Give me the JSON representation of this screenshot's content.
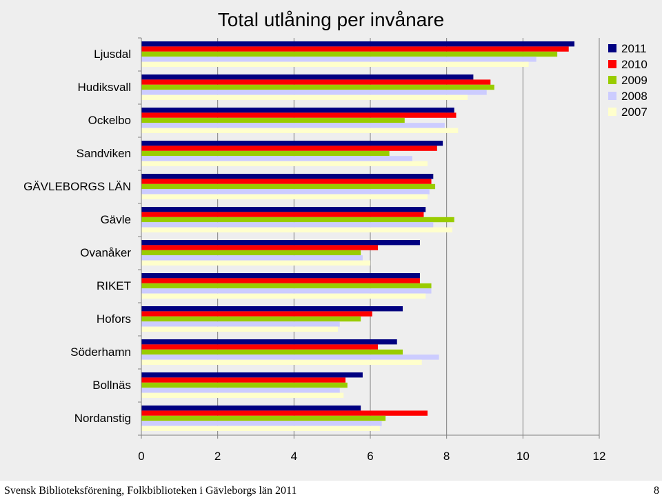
{
  "chart_data": {
    "type": "bar",
    "orientation": "horizontal",
    "title": "Total utlåning per invånare",
    "xlabel": "",
    "ylabel": "",
    "xlim": [
      0,
      12
    ],
    "xticks": [
      0,
      2,
      4,
      6,
      8,
      10,
      12
    ],
    "grid": true,
    "legend_position": "right",
    "categories": [
      "Ljusdal",
      "Hudiksvall",
      "Ockelbo",
      "Sandviken",
      "GÄVLEBORGS LÄN",
      "Gävle",
      "Ovanåker",
      "RIKET",
      "Hofors",
      "Söderhamn",
      "Bollnäs",
      "Nordanstig"
    ],
    "series": [
      {
        "name": "2011",
        "color": "#000080",
        "values": [
          11.35,
          8.7,
          8.2,
          7.9,
          7.65,
          7.45,
          7.3,
          7.3,
          6.85,
          6.7,
          5.8,
          5.75
        ]
      },
      {
        "name": "2010",
        "color": "#ff0000",
        "values": [
          11.2,
          9.15,
          8.25,
          7.75,
          7.6,
          7.4,
          6.2,
          7.3,
          6.05,
          6.2,
          5.35,
          7.5
        ]
      },
      {
        "name": "2009",
        "color": "#99cc00",
        "values": [
          10.9,
          9.25,
          6.9,
          6.5,
          7.7,
          8.2,
          5.75,
          7.6,
          5.75,
          6.85,
          5.4,
          6.4
        ]
      },
      {
        "name": "2008",
        "color": "#ccccff",
        "values": [
          10.35,
          9.05,
          7.95,
          7.1,
          7.55,
          7.65,
          5.8,
          7.6,
          5.2,
          7.8,
          5.2,
          6.3
        ]
      },
      {
        "name": "2007",
        "color": "#ffffcc",
        "values": [
          10.15,
          8.55,
          8.3,
          7.5,
          7.5,
          8.15,
          6.0,
          7.45,
          5.15,
          7.35,
          5.3,
          6.25
        ]
      }
    ]
  },
  "footer": {
    "text": "Svensk Biblioteksförening, Folkbiblioteken i Gävleborgs län 2011",
    "page_number": "8"
  }
}
